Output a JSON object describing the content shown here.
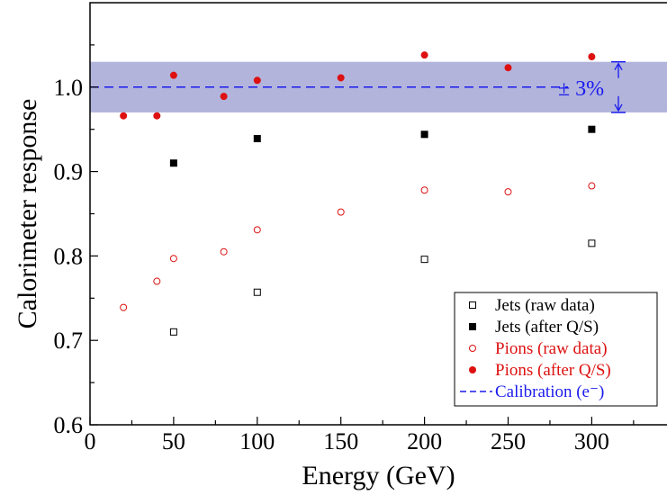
{
  "chart_data": {
    "type": "scatter",
    "xlabel": "Energy (GeV)",
    "ylabel": "Calorimeter response",
    "xlim": [
      0,
      345
    ],
    "ylim": [
      0.6,
      1.1
    ],
    "x_ticks": [
      0,
      50,
      100,
      150,
      200,
      250,
      300
    ],
    "y_ticks": [
      0.6,
      0.7,
      0.8,
      0.9,
      1.0
    ],
    "x_tick_labels": [
      "0",
      "50",
      "100",
      "150",
      "200",
      "250",
      "300"
    ],
    "y_tick_labels": [
      "0.6",
      "0.7",
      "0.8",
      "0.9",
      "1.0"
    ],
    "grid": false,
    "legend_position": "bottom-right",
    "band": {
      "center": 1.0,
      "half_width": 0.03,
      "label": "± 3%",
      "color": "#b2b4dc"
    },
    "calibration_line": {
      "name": "Calibration (e⁻)",
      "y": 1.0,
      "color": "#1a1aee"
    },
    "series": [
      {
        "name": "Jets (raw data)",
        "marker": "square-open",
        "color": "#000000",
        "points": [
          [
            50,
            0.71
          ],
          [
            100,
            0.757
          ],
          [
            200,
            0.796
          ],
          [
            300,
            0.815
          ]
        ]
      },
      {
        "name": "Jets (after Q/S)",
        "marker": "square-filled",
        "color": "#000000",
        "points": [
          [
            50,
            0.91
          ],
          [
            100,
            0.939
          ],
          [
            200,
            0.944
          ],
          [
            300,
            0.95
          ]
        ]
      },
      {
        "name": "Pions (raw data)",
        "marker": "circle-open",
        "color": "#dd1111",
        "points": [
          [
            20,
            0.739
          ],
          [
            40,
            0.77
          ],
          [
            50,
            0.797
          ],
          [
            80,
            0.805
          ],
          [
            100,
            0.831
          ],
          [
            150,
            0.852
          ],
          [
            200,
            0.878
          ],
          [
            250,
            0.876
          ],
          [
            300,
            0.883
          ]
        ]
      },
      {
        "name": "Pions (after Q/S)",
        "marker": "circle-filled",
        "color": "#dd1111",
        "points": [
          [
            20,
            0.966
          ],
          [
            40,
            0.966
          ],
          [
            50,
            1.014
          ],
          [
            80,
            0.989
          ],
          [
            100,
            1.008
          ],
          [
            150,
            1.011
          ],
          [
            200,
            1.038
          ],
          [
            250,
            1.023
          ],
          [
            300,
            1.036
          ]
        ]
      }
    ]
  }
}
